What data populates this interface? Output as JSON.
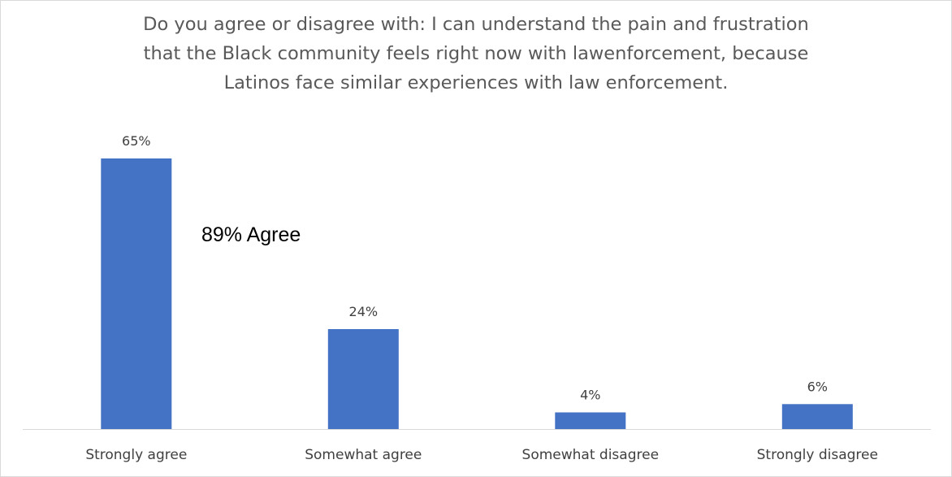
{
  "chart_data": {
    "type": "bar",
    "title_lines": [
      "Do you agree or disagree with: I can understand the pain and frustration",
      "that the Black community feels right now with lawenforcement, because",
      "Latinos face similar experiences with law enforcement."
    ],
    "categories": [
      "Strongly agree",
      "Somewhat agree",
      "Somewhat disagree",
      "Strongly disagree"
    ],
    "values": [
      65,
      24,
      4,
      6
    ],
    "data_labels": [
      "65%",
      "24%",
      "4%",
      "6%"
    ],
    "annotation": "89% Agree",
    "ylim": [
      0,
      65
    ],
    "grid": false,
    "legend": "none",
    "bar_color": "#4472C4"
  }
}
